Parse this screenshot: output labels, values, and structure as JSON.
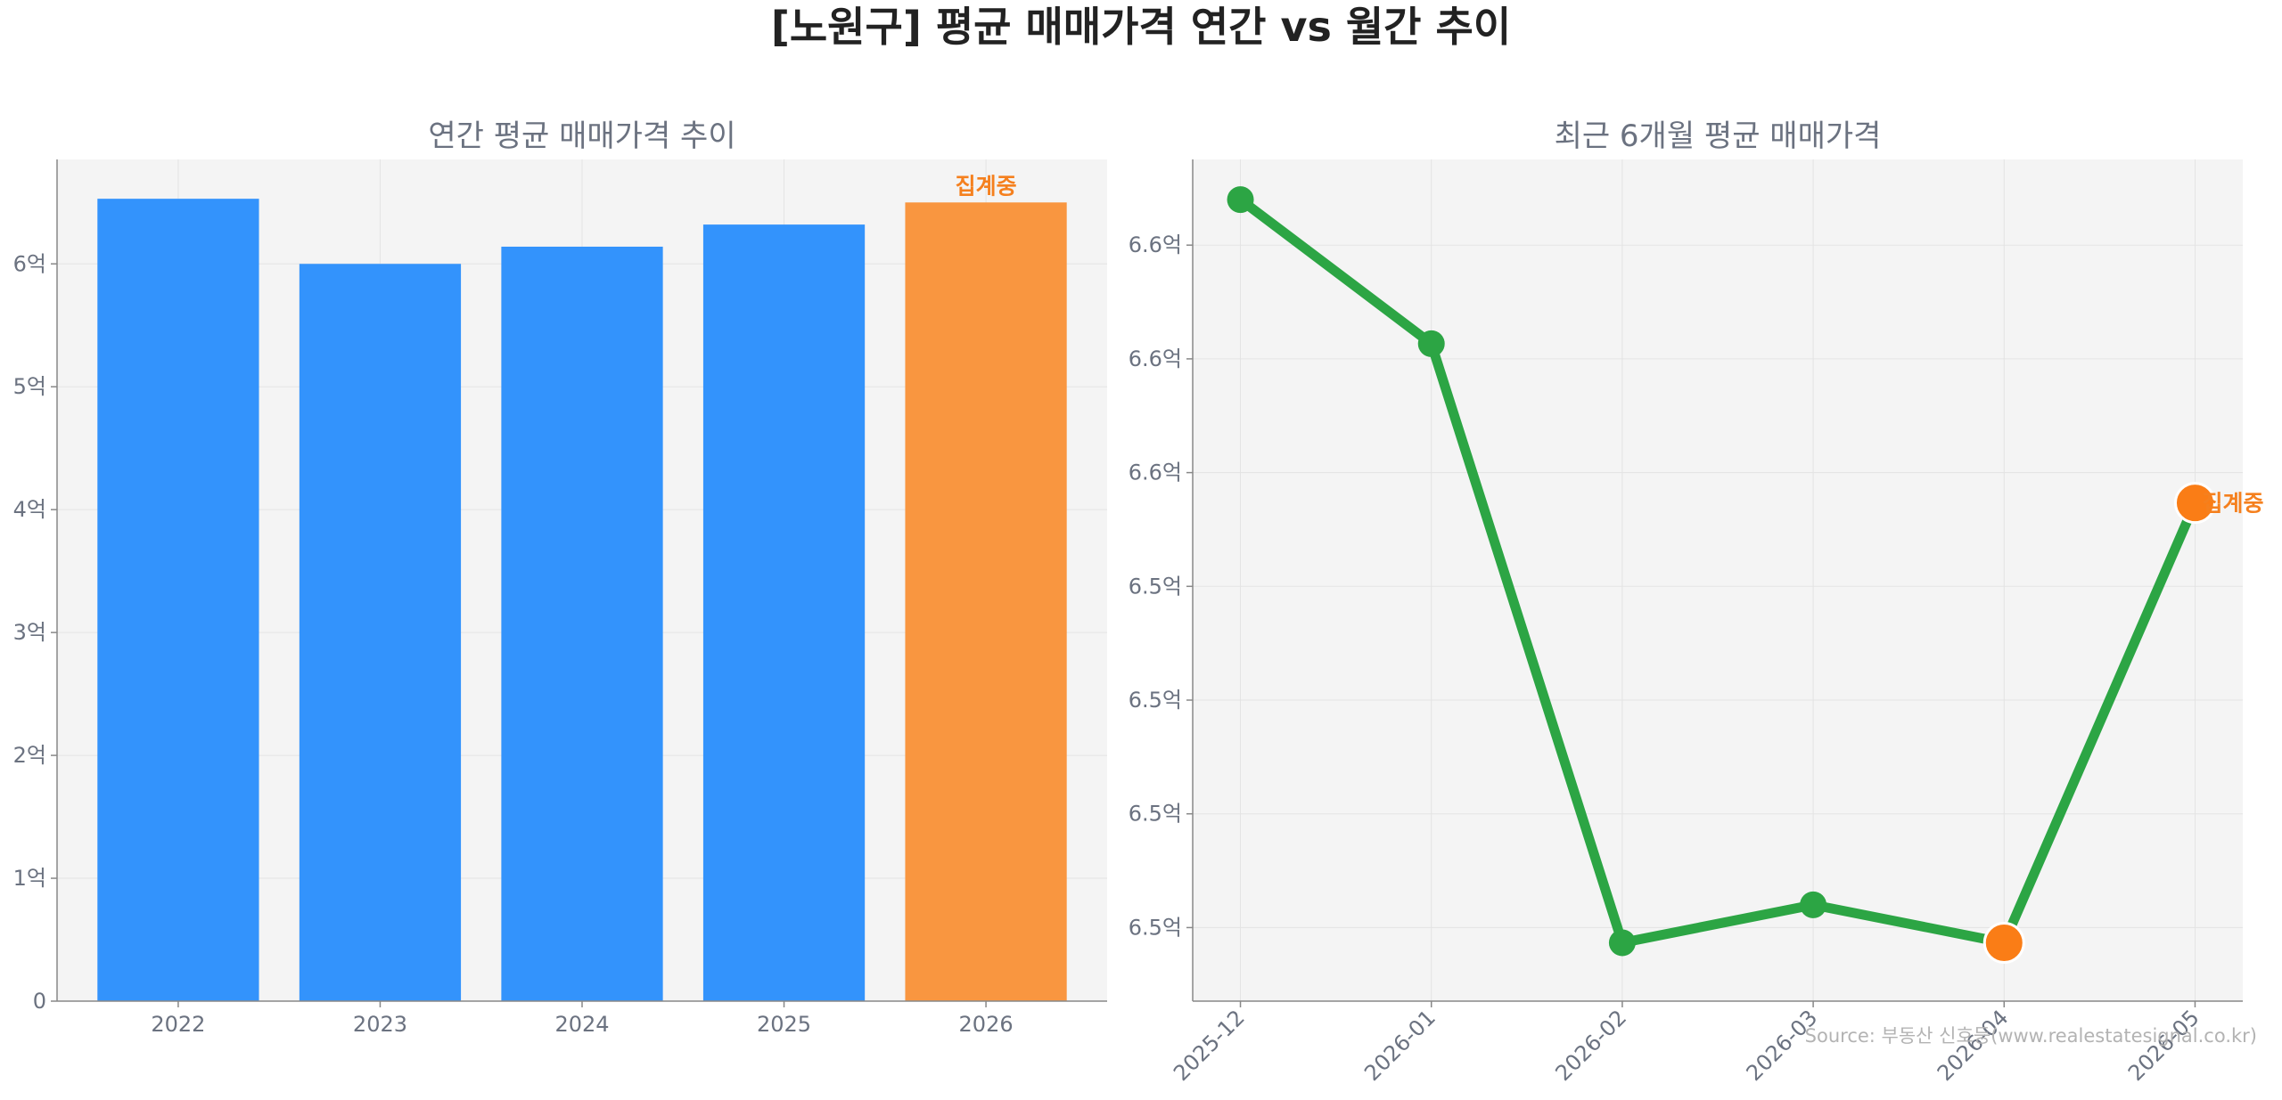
{
  "title": "[노원구] 평균 매매가격 연간 vs 월간 추이",
  "source": "Source: 부동산 신호등(www.realestatesignal.co.kr)",
  "colors": {
    "blue": "#3393fc",
    "orange": "#f99640",
    "green": "#2ca544",
    "orange_marker": "#fa7d16",
    "annotation": "#f5801e"
  },
  "chart_data": [
    {
      "type": "bar",
      "title": "연간 평균 매매가격 추이",
      "categories": [
        "2022",
        "2023",
        "2024",
        "2025",
        "2026"
      ],
      "values": [
        6.53,
        6.0,
        6.14,
        6.32,
        6.5
      ],
      "unit": "억",
      "ylim": [
        0,
        6.85
      ],
      "yticks": [
        {
          "v": 0,
          "label": "0"
        },
        {
          "v": 1,
          "label": "1억"
        },
        {
          "v": 2,
          "label": "2억"
        },
        {
          "v": 3,
          "label": "3억"
        },
        {
          "v": 4,
          "label": "4억"
        },
        {
          "v": 5,
          "label": "5억"
        },
        {
          "v": 6,
          "label": "6억"
        }
      ],
      "highlight_index": 4,
      "annotation": "집계중",
      "grid": true
    },
    {
      "type": "line",
      "title": "최근 6개월 평균 매매가격",
      "x": [
        "2025-12",
        "2026-01",
        "2026-02",
        "2026-03",
        "2026-04",
        "2026-05"
      ],
      "values": [
        6.606,
        6.587,
        6.508,
        6.513,
        6.508,
        6.566
      ],
      "unit": "억",
      "ylim": [
        6.5003,
        6.6113
      ],
      "yticks": [
        {
          "v": 6.51,
          "label": "6.5억"
        },
        {
          "v": 6.525,
          "label": "6.5억"
        },
        {
          "v": 6.54,
          "label": "6.5억"
        },
        {
          "v": 6.555,
          "label": "6.5억"
        },
        {
          "v": 6.57,
          "label": "6.6억"
        },
        {
          "v": 6.585,
          "label": "6.6억"
        },
        {
          "v": 6.6,
          "label": "6.6억"
        }
      ],
      "highlight_indices": [
        4,
        5
      ],
      "annotation": "집계중",
      "grid": true
    }
  ]
}
